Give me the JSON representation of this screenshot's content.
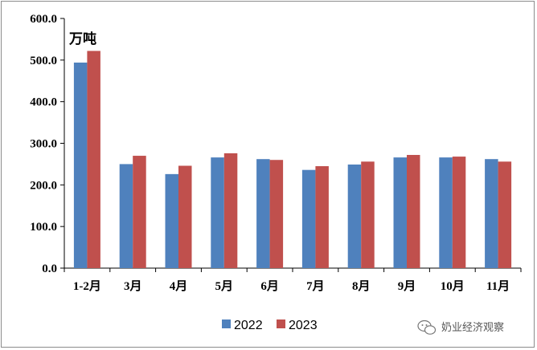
{
  "chart_data": {
    "type": "bar",
    "title": "",
    "xlabel": "",
    "ylabel": "",
    "unit_label": "万吨",
    "categories": [
      "1-2月",
      "3月",
      "4月",
      "5月",
      "6月",
      "7月",
      "8月",
      "9月",
      "10月",
      "11月"
    ],
    "series": [
      {
        "name": "2022",
        "color": "#4f81bd",
        "values": [
          494,
          250,
          226,
          266,
          262,
          236,
          249,
          266,
          266,
          262
        ]
      },
      {
        "name": "2023",
        "color": "#c0504d",
        "values": [
          522,
          270,
          246,
          276,
          260,
          245,
          256,
          272,
          268,
          256
        ]
      }
    ],
    "ylim": [
      0,
      600
    ],
    "yticks": [
      "0.0",
      "100.0",
      "200.0",
      "300.0",
      "400.0",
      "500.0",
      "600.0"
    ],
    "grid": false,
    "legend_position": "bottom"
  },
  "watermark": {
    "icon": "wechat-icon",
    "text": "奶业经济观察"
  }
}
